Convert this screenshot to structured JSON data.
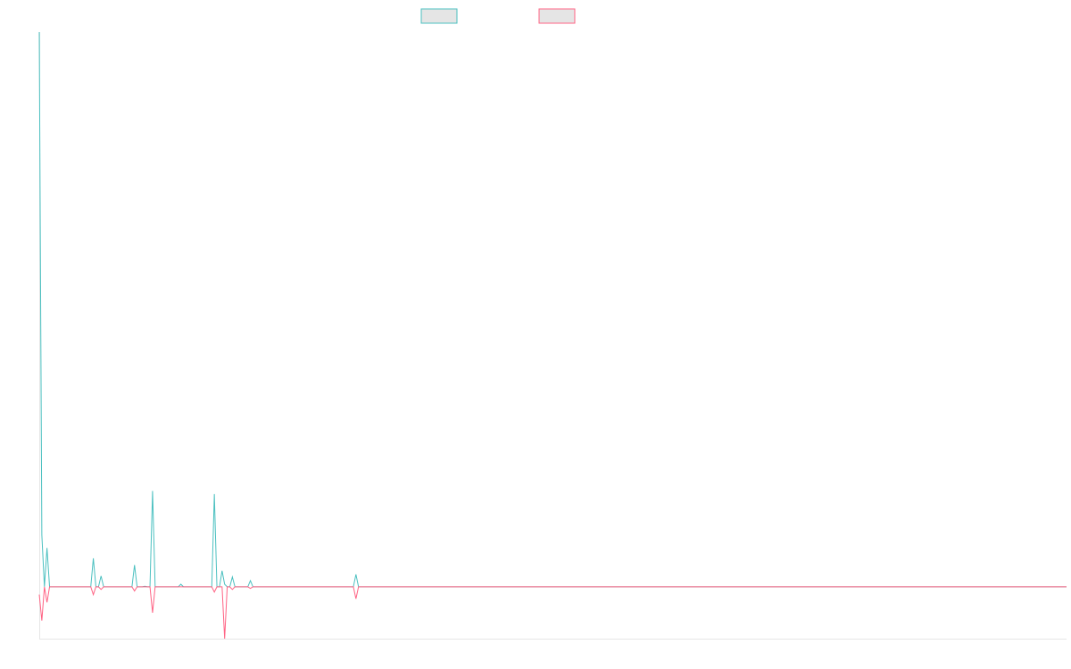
{
  "chart_data": {
    "type": "line",
    "title": "",
    "xlabel": "",
    "ylabel": "",
    "x_range": [
      0,
      399
    ],
    "ylim": [
      -10,
      107
    ],
    "grid": false,
    "legend": "top-center",
    "series": [
      {
        "name": "",
        "color": "#4bc0c0",
        "points": [
          [
            0,
            107
          ],
          [
            1,
            10
          ],
          [
            3,
            7.5
          ],
          [
            21,
            5.5
          ],
          [
            24,
            2.1
          ],
          [
            37,
            4.2
          ],
          [
            41,
            0.1
          ],
          [
            44,
            18.5
          ],
          [
            55,
            0.5
          ],
          [
            68,
            17.9
          ],
          [
            71,
            3.1
          ],
          [
            72,
            0.5
          ],
          [
            75,
            1.9
          ],
          [
            82,
            1.2
          ],
          [
            123,
            2.4
          ]
        ]
      },
      {
        "name": "",
        "color": "#ff6384",
        "points": [
          [
            0,
            -1.5
          ],
          [
            1,
            -6.5
          ],
          [
            3,
            -3
          ],
          [
            21,
            -1.5
          ],
          [
            24,
            -0.5
          ],
          [
            37,
            -0.8
          ],
          [
            44,
            -5
          ],
          [
            68,
            -1
          ],
          [
            72,
            -10
          ],
          [
            75,
            -0.5
          ],
          [
            82,
            -0.3
          ],
          [
            123,
            -2.3
          ]
        ]
      }
    ]
  }
}
